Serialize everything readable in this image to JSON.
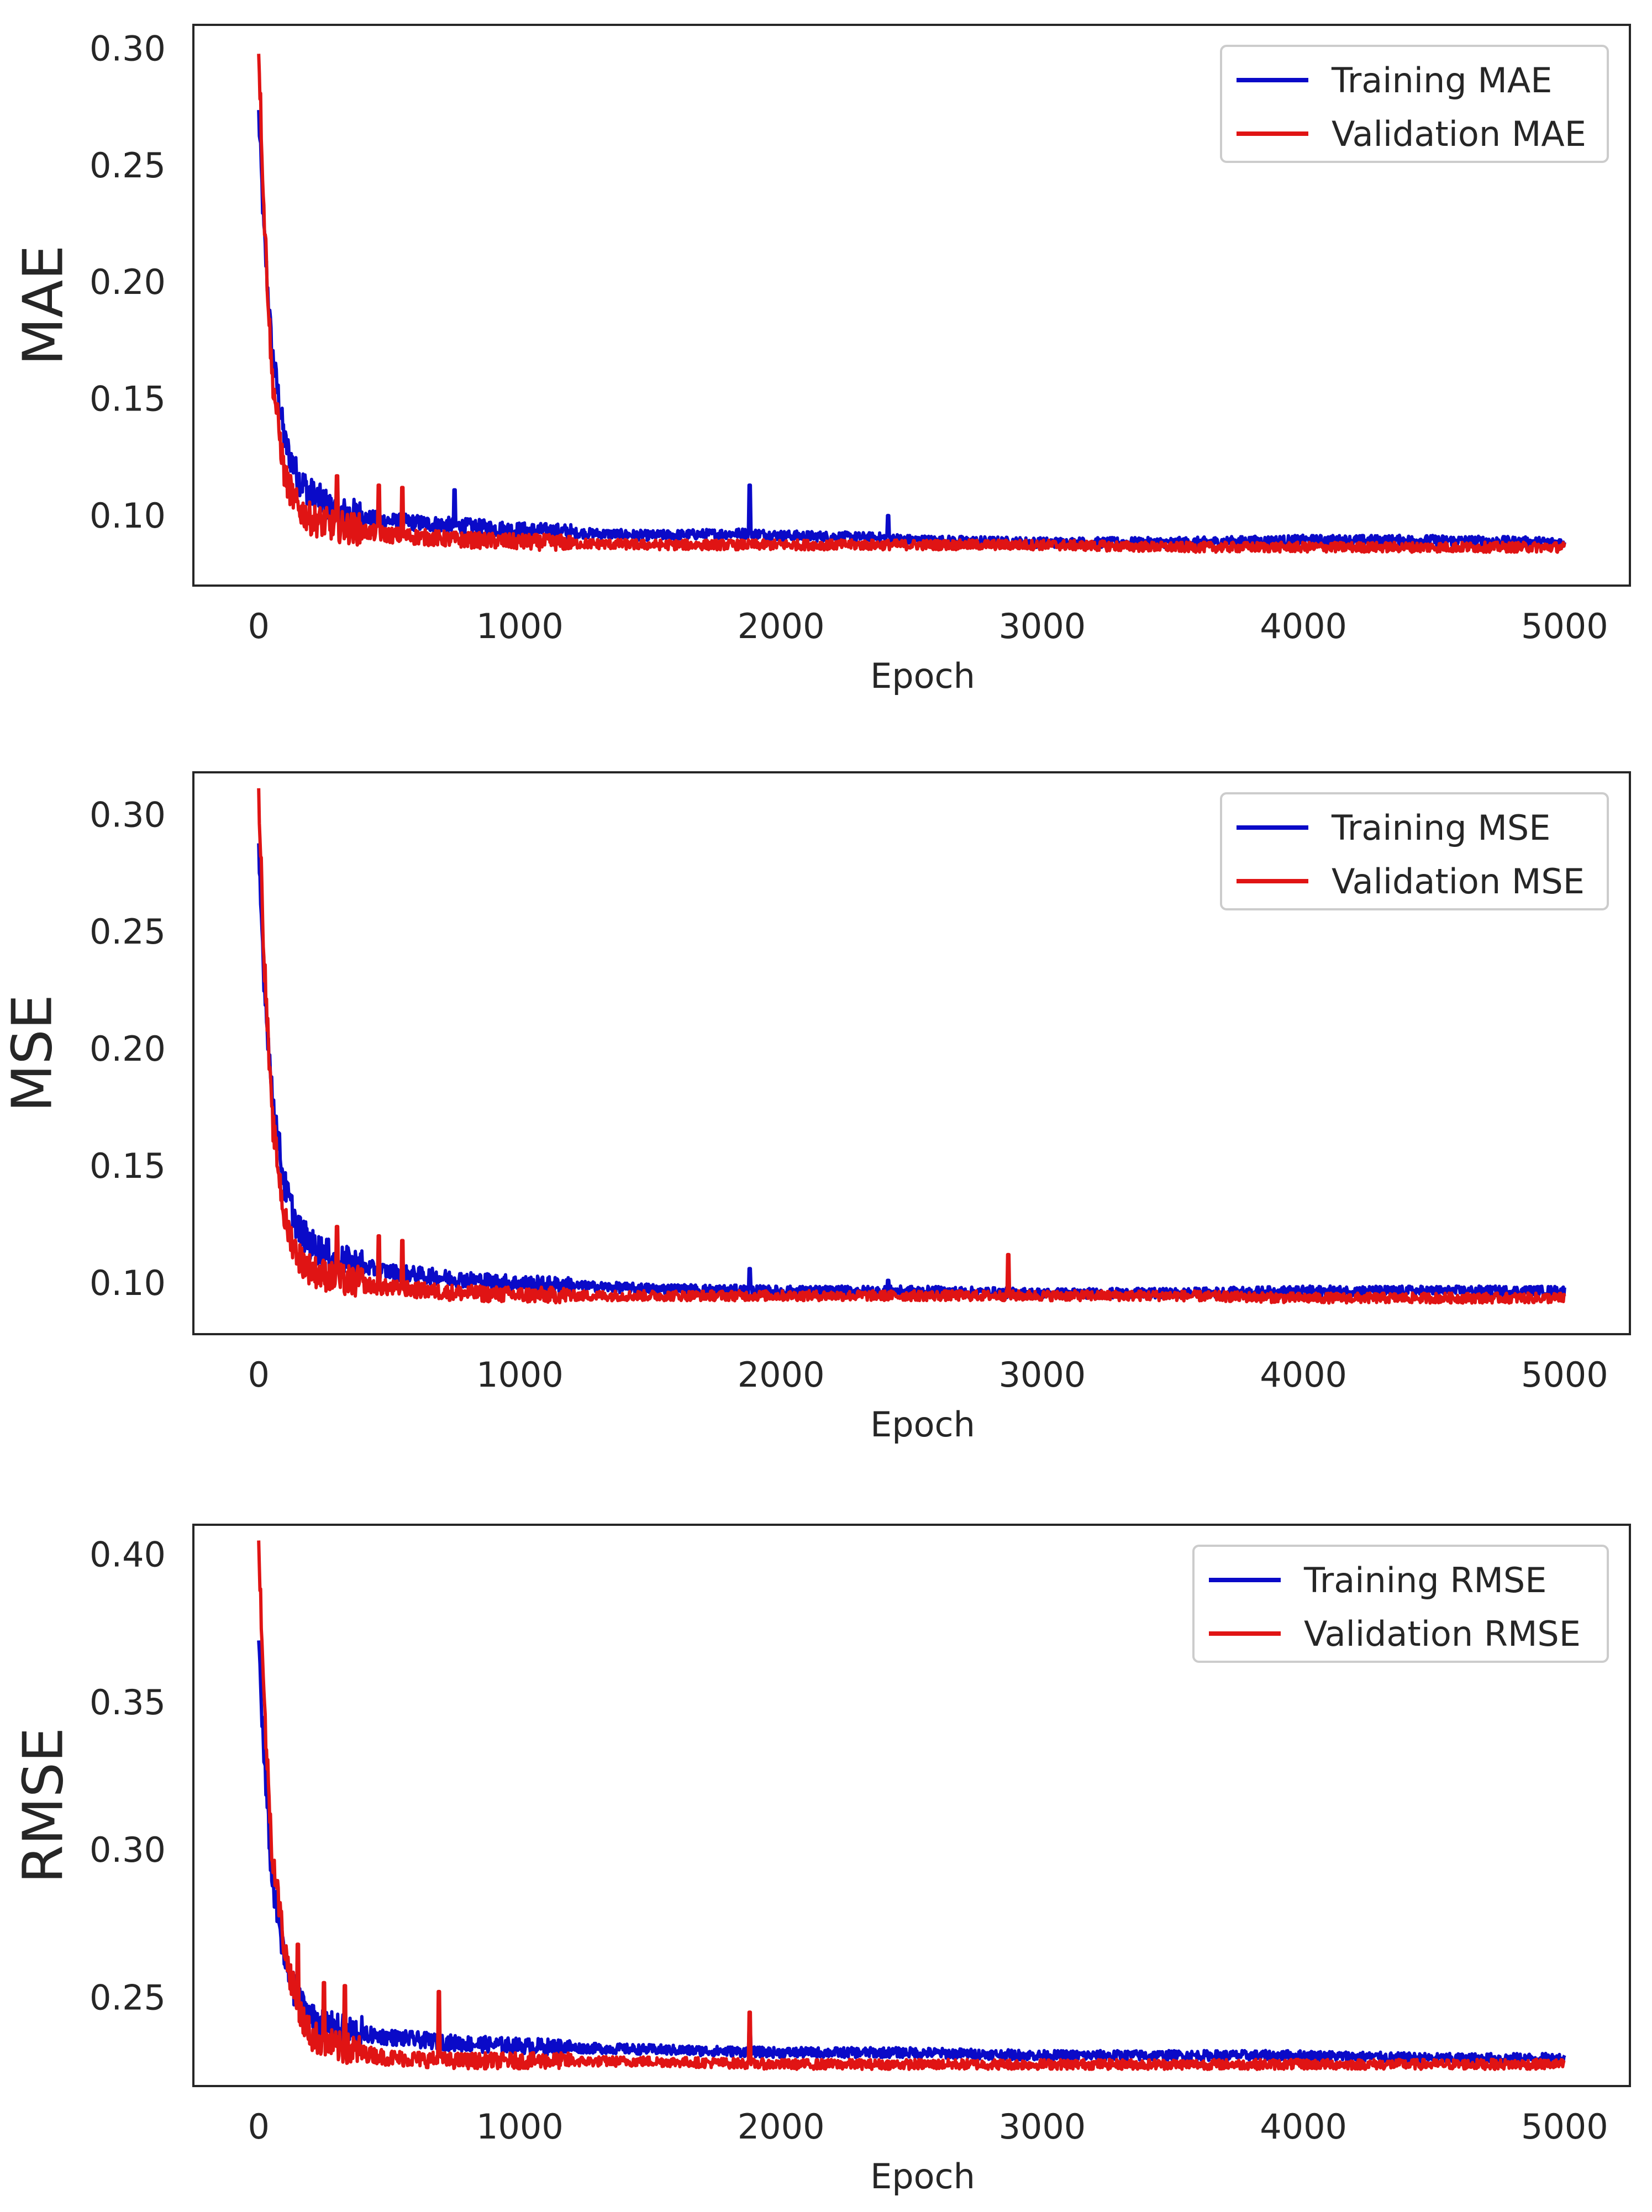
{
  "chart_data": [
    {
      "type": "line",
      "title": "",
      "xlabel": "Epoch",
      "ylabel": "MAE",
      "xlim": [
        -250,
        5250
      ],
      "ylim": [
        0.07,
        0.31
      ],
      "xticks": [
        0,
        1000,
        2000,
        3000,
        4000,
        5000
      ],
      "xtick_labels": [
        "0",
        "1000",
        "2000",
        "3000",
        "4000",
        "5000"
      ],
      "yticks": [
        0.1,
        0.15,
        0.2,
        0.25,
        0.3
      ],
      "ytick_labels": [
        "0.10",
        "0.15",
        "0.20",
        "0.25",
        "0.30"
      ],
      "legend_position": "top-right",
      "grid": false,
      "series": [
        {
          "name": "Training MAE",
          "color": "#0a0ac8",
          "x": [
            0,
            20,
            50,
            100,
            150,
            200,
            300,
            500,
            750,
            1000,
            1500,
            1880,
            2000,
            2400,
            2500,
            3000,
            3500,
            4000,
            4500,
            5000
          ],
          "y": [
            0.27,
            0.22,
            0.17,
            0.13,
            0.115,
            0.108,
            0.1,
            0.097,
            0.095,
            0.093,
            0.091,
            0.092,
            0.091,
            0.09,
            0.089,
            0.088,
            0.088,
            0.089,
            0.089,
            0.088
          ],
          "spikes": [
            [
              750,
              0.111
            ],
            [
              1880,
              0.113
            ],
            [
              2410,
              0.1
            ]
          ]
        },
        {
          "name": "Validation MAE",
          "color": "#e01414",
          "x": [
            0,
            20,
            50,
            100,
            150,
            200,
            300,
            500,
            750,
            1000,
            1500,
            2000,
            2500,
            3000,
            3500,
            4000,
            4500,
            5000
          ],
          "y": [
            0.3,
            0.23,
            0.16,
            0.115,
            0.102,
            0.097,
            0.094,
            0.091,
            0.089,
            0.088,
            0.087,
            0.087,
            0.087,
            0.087,
            0.086,
            0.086,
            0.086,
            0.086
          ],
          "spikes": [
            [
              300,
              0.117
            ],
            [
              460,
              0.113
            ],
            [
              550,
              0.112
            ]
          ]
        }
      ]
    },
    {
      "type": "line",
      "title": "",
      "xlabel": "Epoch",
      "ylabel": "MSE",
      "xlim": [
        -250,
        5250
      ],
      "ylim": [
        0.078,
        0.318
      ],
      "xticks": [
        0,
        1000,
        2000,
        3000,
        4000,
        5000
      ],
      "xtick_labels": [
        "0",
        "1000",
        "2000",
        "3000",
        "4000",
        "5000"
      ],
      "yticks": [
        0.1,
        0.15,
        0.2,
        0.25,
        0.3
      ],
      "ytick_labels": [
        "0.10",
        "0.15",
        "0.20",
        "0.25",
        "0.30"
      ],
      "legend_position": "top-right",
      "grid": false,
      "series": [
        {
          "name": "Training MSE",
          "color": "#0a0ac8",
          "x": [
            0,
            20,
            50,
            100,
            150,
            200,
            300,
            500,
            750,
            1000,
            1500,
            2000,
            2500,
            3000,
            3500,
            4000,
            4500,
            5000
          ],
          "y": [
            0.28,
            0.23,
            0.18,
            0.14,
            0.122,
            0.115,
            0.108,
            0.104,
            0.101,
            0.099,
            0.097,
            0.096,
            0.096,
            0.095,
            0.095,
            0.096,
            0.096,
            0.096
          ],
          "spikes": [
            [
              1880,
              0.106
            ],
            [
              2410,
              0.101
            ]
          ]
        },
        {
          "name": "Validation MSE",
          "color": "#e01414",
          "x": [
            0,
            20,
            50,
            100,
            150,
            200,
            300,
            500,
            750,
            1000,
            1500,
            2000,
            2500,
            3000,
            3500,
            4000,
            4500,
            5000
          ],
          "y": [
            0.31,
            0.24,
            0.17,
            0.125,
            0.11,
            0.104,
            0.1,
            0.097,
            0.095,
            0.094,
            0.094,
            0.094,
            0.094,
            0.094,
            0.094,
            0.093,
            0.093,
            0.093
          ],
          "spikes": [
            [
              300,
              0.124
            ],
            [
              460,
              0.12
            ],
            [
              550,
              0.118
            ],
            [
              2870,
              0.112
            ]
          ]
        }
      ]
    },
    {
      "type": "line",
      "title": "",
      "xlabel": "Epoch",
      "ylabel": "RMSE",
      "xlim": [
        -250,
        5250
      ],
      "ylim": [
        0.22,
        0.41
      ],
      "xticks": [
        0,
        1000,
        2000,
        3000,
        4000,
        5000
      ],
      "xtick_labels": [
        "0",
        "1000",
        "2000",
        "3000",
        "4000",
        "5000"
      ],
      "yticks": [
        0.25,
        0.3,
        0.35,
        0.4
      ],
      "ytick_labels": [
        "0.25",
        "0.30",
        "0.35",
        "0.40"
      ],
      "legend_position": "top-right",
      "grid": false,
      "series": [
        {
          "name": "Training RMSE",
          "color": "#0a0ac8",
          "x": [
            0,
            20,
            50,
            100,
            150,
            200,
            300,
            500,
            750,
            1000,
            1500,
            2000,
            2500,
            3000,
            3500,
            4000,
            4500,
            5000
          ],
          "y": [
            0.37,
            0.33,
            0.29,
            0.26,
            0.248,
            0.242,
            0.238,
            0.236,
            0.234,
            0.233,
            0.232,
            0.231,
            0.231,
            0.23,
            0.23,
            0.23,
            0.229,
            0.229
          ],
          "spikes": [
            [
              1880,
              0.24
            ]
          ]
        },
        {
          "name": "Validation RMSE",
          "color": "#e01414",
          "x": [
            0,
            20,
            50,
            100,
            150,
            200,
            300,
            500,
            750,
            1000,
            1500,
            2000,
            2500,
            3000,
            3500,
            4000,
            4500,
            5000
          ],
          "y": [
            0.405,
            0.35,
            0.3,
            0.265,
            0.245,
            0.236,
            0.232,
            0.229,
            0.228,
            0.228,
            0.228,
            0.227,
            0.227,
            0.227,
            0.227,
            0.227,
            0.227,
            0.227
          ],
          "spikes": [
            [
              150,
              0.268
            ],
            [
              250,
              0.255
            ],
            [
              330,
              0.254
            ],
            [
              690,
              0.252
            ],
            [
              1880,
              0.245
            ]
          ]
        }
      ]
    }
  ]
}
